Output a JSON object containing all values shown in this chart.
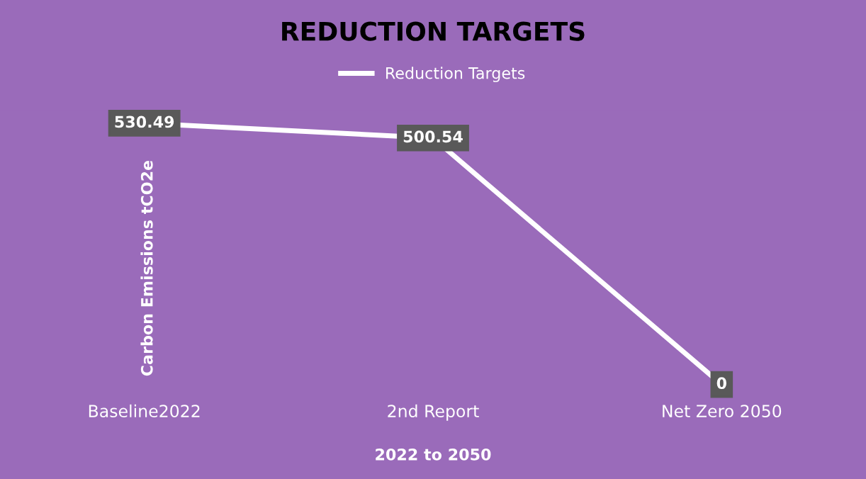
{
  "chart_data": {
    "type": "line",
    "title": "REDUCTION TARGETS",
    "xlabel": "2022 to 2050",
    "ylabel": "Carbon Emissions tCO2e",
    "categories": [
      "Baseline2022",
      "2nd Report",
      "Net Zero 2050"
    ],
    "series": [
      {
        "name": "Reduction Targets",
        "color": "#ffffff",
        "values": [
          530.49,
          500.54,
          0
        ]
      }
    ],
    "data_labels": true,
    "legend": "top",
    "grid": false,
    "marker": "none",
    "line_style": "solid",
    "tick_labels": "x"
  }
}
